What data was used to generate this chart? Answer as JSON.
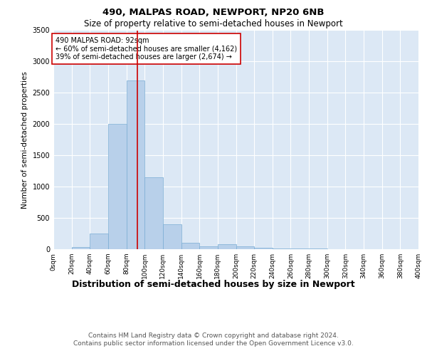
{
  "title1": "490, MALPAS ROAD, NEWPORT, NP20 6NB",
  "title2": "Size of property relative to semi-detached houses in Newport",
  "xlabel": "Distribution of semi-detached houses by size in Newport",
  "ylabel": "Number of semi-detached properties",
  "footnote": "Contains HM Land Registry data © Crown copyright and database right 2024.\nContains public sector information licensed under the Open Government Licence v3.0.",
  "bin_edges": [
    0,
    20,
    40,
    60,
    80,
    100,
    120,
    140,
    160,
    180,
    200,
    220,
    240,
    260,
    280,
    300,
    320,
    340,
    360,
    380,
    400
  ],
  "counts": [
    5,
    30,
    250,
    2000,
    2700,
    1150,
    400,
    100,
    50,
    80,
    40,
    20,
    15,
    10,
    8,
    5,
    3,
    2,
    1,
    0
  ],
  "property_size": 92,
  "bar_color": "#b8d0ea",
  "bar_edge_color": "#7aadd4",
  "vline_color": "#cc0000",
  "annotation_box_color": "#cc0000",
  "annotation_text": "490 MALPAS ROAD: 92sqm\n← 60% of semi-detached houses are smaller (4,162)\n39% of semi-detached houses are larger (2,674) →",
  "ylim": [
    0,
    3500
  ],
  "background_color": "#dce8f5",
  "title1_fontsize": 9.5,
  "title2_fontsize": 8.5,
  "xlabel_fontsize": 9,
  "ylabel_fontsize": 7.5,
  "annotation_fontsize": 7,
  "tick_fontsize": 6.5,
  "ytick_fontsize": 7,
  "footnote_fontsize": 6.5
}
